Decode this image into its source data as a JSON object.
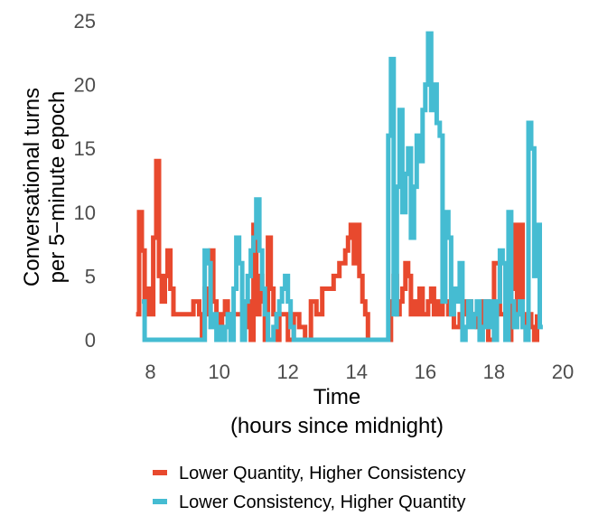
{
  "chart_data": {
    "type": "line",
    "xlabel_line1": "Time",
    "xlabel_line2": "(hours since midnight)",
    "ylabel_line1": "Conversational turns",
    "ylabel_line2": "per 5−minute epoch",
    "xlim": [
      7.25,
      20
    ],
    "ylim": [
      0,
      25
    ],
    "x_ticks": [
      8,
      10,
      12,
      14,
      16,
      18,
      20
    ],
    "y_ticks": [
      0,
      5,
      10,
      15,
      20,
      25
    ],
    "grid": false,
    "legend_position": "bottom",
    "series": [
      {
        "name": "Lower Quantity, Higher Consistency",
        "color": "#E8492E",
        "x": [
          7.58,
          7.67,
          7.75,
          7.83,
          7.92,
          8.0,
          8.08,
          8.17,
          8.25,
          8.33,
          8.42,
          8.5,
          8.58,
          8.67,
          8.75,
          8.83,
          9.0,
          9.25,
          9.42,
          9.5,
          9.58,
          9.67,
          9.75,
          9.83,
          9.92,
          10.0,
          10.08,
          10.17,
          10.25,
          10.42,
          10.58,
          10.75,
          10.83,
          10.92,
          11.0,
          11.08,
          11.17,
          11.25,
          11.33,
          11.42,
          11.5,
          11.58,
          11.67,
          11.75,
          11.83,
          12.0,
          12.17,
          12.33,
          12.5,
          12.67,
          12.83,
          13.0,
          13.17,
          13.33,
          13.5,
          13.67,
          13.75,
          13.83,
          13.92,
          14.0,
          14.08,
          14.17,
          14.25,
          14.33,
          14.42,
          14.5,
          14.58,
          14.67,
          15.0,
          15.08,
          15.17,
          15.25,
          15.33,
          15.42,
          15.5,
          15.58,
          15.67,
          15.75,
          15.83,
          15.92,
          16.0,
          16.08,
          16.17,
          16.25,
          16.33,
          16.42,
          16.5,
          16.67,
          16.83,
          17.0,
          17.17,
          17.33,
          17.5,
          17.67,
          17.83,
          18.0,
          18.17,
          18.33,
          18.5,
          18.58,
          18.67,
          18.75,
          18.83,
          18.92,
          19.0,
          19.08,
          19.17,
          19.25
        ],
        "y": [
          2,
          10,
          7,
          2,
          4,
          2,
          8,
          14,
          5,
          3,
          5,
          7,
          4,
          2,
          2,
          2,
          2,
          3,
          2,
          0,
          4,
          2,
          7,
          3,
          2,
          1,
          2,
          3,
          2,
          2,
          2,
          1,
          3,
          0,
          9,
          2,
          5,
          3,
          0,
          8,
          4,
          2,
          0,
          2,
          2,
          0,
          2,
          1,
          0,
          3,
          2,
          4,
          4,
          5,
          6,
          7,
          8,
          9,
          6,
          9,
          5,
          3,
          2,
          0,
          0,
          0,
          0,
          0,
          3,
          5,
          2,
          3,
          4,
          6,
          5,
          2,
          3,
          2,
          4,
          2,
          2,
          3,
          4,
          2,
          3,
          2,
          3,
          2,
          1,
          2,
          3,
          2,
          1,
          3,
          0,
          6,
          2,
          0,
          4,
          9,
          2,
          9,
          2,
          0,
          2,
          1,
          0,
          2
        ]
      },
      {
        "name": "Lower Consistency, Higher Quantity",
        "color": "#45BCD2",
        "x": [
          7.75,
          7.83,
          8.0,
          8.5,
          9.0,
          9.5,
          9.58,
          9.67,
          9.75,
          9.83,
          9.92,
          10.0,
          10.08,
          10.17,
          10.25,
          10.33,
          10.42,
          10.5,
          10.58,
          10.67,
          10.75,
          10.83,
          10.92,
          11.0,
          11.08,
          11.17,
          11.25,
          11.33,
          11.42,
          11.5,
          11.58,
          11.67,
          11.75,
          11.83,
          11.92,
          12.0,
          12.08,
          12.17,
          12.25,
          12.33,
          12.42,
          12.5,
          12.58,
          13.0,
          13.5,
          14.0,
          14.5,
          14.83,
          14.92,
          15.0,
          15.08,
          15.17,
          15.25,
          15.33,
          15.42,
          15.5,
          15.58,
          15.67,
          15.75,
          15.83,
          15.92,
          16.0,
          16.08,
          16.17,
          16.25,
          16.33,
          16.42,
          16.5,
          16.58,
          16.67,
          16.75,
          16.83,
          16.92,
          17.0,
          17.08,
          17.17,
          17.25,
          17.33,
          17.42,
          17.5,
          17.58,
          17.67,
          17.75,
          17.83,
          17.92,
          18.0,
          18.08,
          18.17,
          18.25,
          18.33,
          18.42,
          18.5,
          18.58,
          18.67,
          18.75,
          18.83,
          18.92,
          19.0,
          19.08,
          19.17,
          19.25,
          19.33,
          19.42
        ],
        "y": [
          3,
          0,
          0,
          0,
          0,
          0,
          7,
          6,
          1,
          2,
          0,
          1,
          0,
          1,
          2,
          0,
          4,
          8,
          6,
          0,
          3,
          5,
          7,
          8,
          11,
          7,
          4,
          2,
          0,
          0,
          1,
          2,
          3,
          4,
          5,
          3,
          1,
          0,
          0,
          0,
          0,
          0,
          0,
          0,
          0,
          0,
          0,
          0,
          16,
          22,
          2,
          12,
          18,
          10,
          13,
          15,
          8,
          12,
          16,
          14,
          18,
          20,
          24,
          18,
          20,
          17,
          16,
          3,
          10,
          8,
          2,
          4,
          3,
          6,
          0,
          1,
          3,
          1,
          2,
          3,
          0,
          1,
          3,
          1,
          3,
          0,
          3,
          7,
          6,
          0,
          10,
          3,
          1,
          2,
          3,
          1,
          0,
          17,
          15,
          5,
          9,
          1,
          1
        ]
      }
    ]
  }
}
